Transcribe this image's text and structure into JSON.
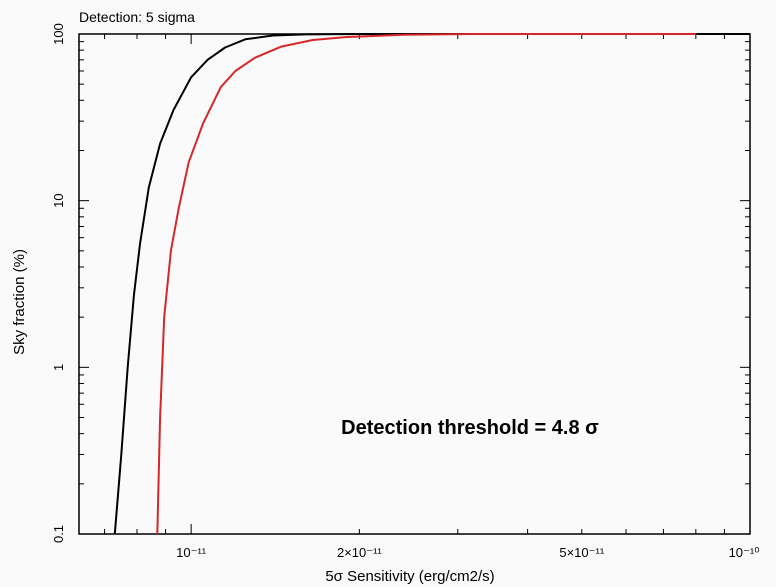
{
  "chart_data": {
    "type": "line",
    "title": "Detection: 5 sigma",
    "xlabel": "5σ Sensitivity (erg/cm2/s)",
    "ylabel": "Sky fraction (%)",
    "xscale": "log",
    "yscale": "log",
    "xlim": [
      6.3e-12,
      1e-10
    ],
    "ylim": [
      0.1,
      100
    ],
    "x_ticks": [
      {
        "value": 1e-11,
        "label": "10⁻¹¹"
      },
      {
        "value": 2e-11,
        "label": "2×10⁻¹¹"
      },
      {
        "value": 5e-11,
        "label": "5×10⁻¹¹"
      },
      {
        "value": 1e-10,
        "label": "10⁻¹⁰"
      }
    ],
    "y_ticks": [
      {
        "value": 0.1,
        "label": "0.1"
      },
      {
        "value": 1,
        "label": "1"
      },
      {
        "value": 10,
        "label": "10"
      },
      {
        "value": 100,
        "label": "100"
      }
    ],
    "annotation": "Detection threshold = 4.8 σ",
    "grid": false,
    "series": [
      {
        "color": "#000000",
        "x": [
          7.3e-12,
          7.5e-12,
          7.7e-12,
          7.9e-12,
          8.1e-12,
          8.4e-12,
          8.8e-12,
          9.3e-12,
          1e-11,
          1.07e-11,
          1.15e-11,
          1.25e-11,
          1.4e-11,
          1.6e-11,
          2e-11,
          3e-11,
          5e-11,
          1e-10
        ],
        "y": [
          0.1,
          0.3,
          1.0,
          2.7,
          5.5,
          12,
          22,
          35,
          55,
          70,
          83,
          93,
          98,
          99.5,
          100,
          100,
          100,
          100
        ]
      },
      {
        "color": "#d62728",
        "x": [
          8.7e-12,
          8.8e-12,
          8.95e-12,
          9.2e-12,
          9.5e-12,
          9.9e-12,
          1.05e-11,
          1.13e-11,
          1.2e-11,
          1.3e-11,
          1.45e-11,
          1.65e-11,
          1.9e-11,
          2.4e-11,
          3.2e-11,
          5e-11,
          8e-11
        ],
        "y": [
          0.1,
          0.5,
          2.0,
          5.0,
          9.0,
          17,
          29,
          48,
          60,
          72,
          84,
          92,
          96,
          99,
          100,
          100,
          100
        ]
      }
    ]
  }
}
